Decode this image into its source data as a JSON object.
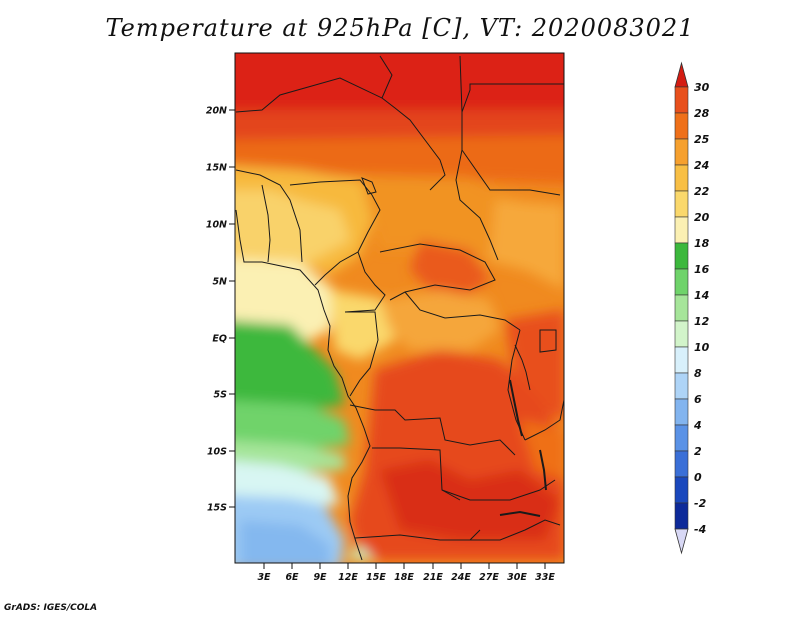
{
  "title": "Temperature at 925hPa [C], VT: 2020083021",
  "footer": "GrADS: IGES/COLA",
  "map": {
    "lat_labels": [
      "20N",
      "15N",
      "10N",
      "5N",
      "EQ",
      "5S",
      "10S",
      "15S"
    ],
    "lon_labels": [
      "3E",
      "6E",
      "9E",
      "12E",
      "15E",
      "18E",
      "21E",
      "24E",
      "27E",
      "30E",
      "33E"
    ],
    "lat_range": [
      -19.5,
      24.5
    ],
    "lon_range": [
      0,
      35
    ],
    "grid": false
  },
  "colorbar": {
    "labels": [
      "30",
      "28",
      "25",
      "24",
      "22",
      "20",
      "18",
      "16",
      "14",
      "12",
      "10",
      "8",
      "6",
      "4",
      "2",
      "0",
      "-2",
      "-4"
    ],
    "colors_top_to_bottom": [
      "#e0321a",
      "#e8501c",
      "#ef7019",
      "#f6a02e",
      "#f8bf45",
      "#fad86c",
      "#fbf0b3",
      "#3cb83c",
      "#6fd36a",
      "#a6e59a",
      "#d2f4ca",
      "#d8f0fb",
      "#aed4f7",
      "#82b4ef",
      "#5a92e6",
      "#3a6fd7",
      "#1a48bd",
      "#0d2a9a",
      "#10107a"
    ],
    "top_arrow_color": "#d41c12",
    "bottom_arrow_color": "#d8d8f5"
  }
}
